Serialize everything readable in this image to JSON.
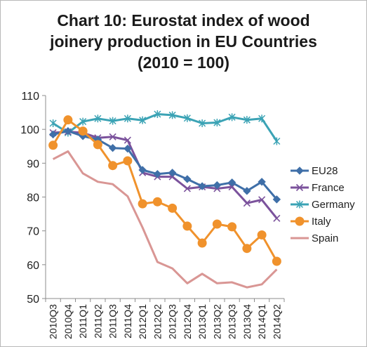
{
  "chart_data": {
    "type": "line",
    "title_lines": [
      "Chart 10: Eurostat index of wood",
      "joinery production in EU Countries",
      "(2010 = 100)"
    ],
    "xlabel": "",
    "ylabel": "",
    "ylim": [
      50,
      110
    ],
    "yticks": [
      50,
      60,
      70,
      80,
      90,
      100,
      110
    ],
    "grid": false,
    "legend_position": "right",
    "categories": [
      "2010Q3",
      "2010Q4",
      "2011Q1",
      "2011Q2",
      "2011Q3",
      "2011Q4",
      "2012Q1",
      "2012Q2",
      "2012Q3",
      "2012Q4",
      "2013Q1",
      "2013Q2",
      "2013Q3",
      "2013Q4",
      "2014Q1",
      "2014Q2"
    ],
    "series": [
      {
        "name": "EU28",
        "color": "#3f6fa8",
        "marker": "diamond",
        "values": [
          98.5,
          99.5,
          98.0,
          97.0,
          94.5,
          94.3,
          88.0,
          86.8,
          87.2,
          85.3,
          83.2,
          83.5,
          84.3,
          81.8,
          84.5,
          79.3
        ]
      },
      {
        "name": "France",
        "color": "#7b529c",
        "marker": "x",
        "values": [
          99.0,
          99.3,
          99.0,
          97.5,
          97.8,
          96.8,
          87.2,
          86.0,
          86.0,
          82.5,
          83.0,
          82.5,
          83.0,
          78.2,
          79.2,
          73.7
        ]
      },
      {
        "name": "Germany",
        "color": "#3ba3b5",
        "marker": "star",
        "values": [
          101.8,
          99.0,
          102.3,
          103.2,
          102.5,
          103.2,
          102.7,
          104.5,
          104.2,
          103.3,
          101.8,
          102.0,
          103.6,
          102.8,
          103.2,
          96.5
        ]
      },
      {
        "name": "Italy",
        "color": "#f0922c",
        "marker": "circle",
        "values": [
          95.3,
          102.8,
          99.5,
          95.5,
          89.3,
          90.7,
          78.0,
          78.6,
          76.7,
          71.4,
          66.4,
          72.0,
          71.2,
          64.8,
          68.8,
          61.0
        ]
      },
      {
        "name": "Spain",
        "color": "#d99694",
        "marker": "none",
        "values": [
          91.2,
          93.5,
          87.0,
          84.5,
          83.8,
          80.2,
          71.0,
          60.8,
          58.9,
          54.5,
          57.3,
          54.5,
          54.8,
          53.3,
          54.2,
          58.6
        ]
      }
    ]
  }
}
